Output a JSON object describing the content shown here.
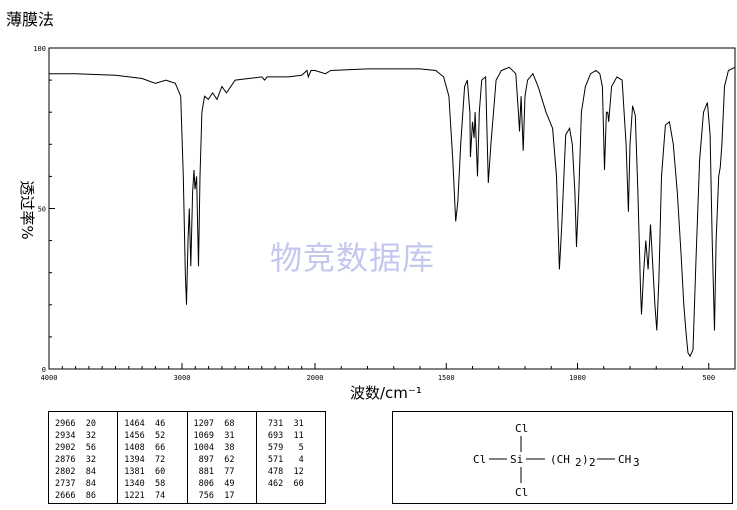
{
  "method_label": "薄膜法",
  "watermark": "物竞数据库",
  "chart_data": {
    "type": "line",
    "xlabel": "波数/cm⁻¹",
    "ylabel": "透过率%",
    "xlim": [
      4000,
      400
    ],
    "ylim": [
      0,
      100
    ],
    "x_ticks": [
      4000,
      3000,
      2000,
      1500,
      1000,
      500
    ],
    "y_ticks": [
      0,
      50,
      100
    ],
    "series": [
      {
        "points": [
          [
            4000,
            92
          ],
          [
            3800,
            92
          ],
          [
            3500,
            91.5
          ],
          [
            3300,
            90.5
          ],
          [
            3200,
            89
          ],
          [
            3120,
            90
          ],
          [
            3050,
            89
          ],
          [
            3010,
            85
          ],
          [
            2990,
            60
          ],
          [
            2975,
            30
          ],
          [
            2966,
            20
          ],
          [
            2955,
            40
          ],
          [
            2945,
            50
          ],
          [
            2934,
            32
          ],
          [
            2920,
            55
          ],
          [
            2910,
            62
          ],
          [
            2902,
            56
          ],
          [
            2890,
            60
          ],
          [
            2876,
            32
          ],
          [
            2865,
            60
          ],
          [
            2850,
            80
          ],
          [
            2830,
            85
          ],
          [
            2802,
            84
          ],
          [
            2770,
            86
          ],
          [
            2737,
            84
          ],
          [
            2700,
            88
          ],
          [
            2666,
            86
          ],
          [
            2600,
            90
          ],
          [
            2500,
            90.5
          ],
          [
            2400,
            91
          ],
          [
            2380,
            90
          ],
          [
            2360,
            91
          ],
          [
            2300,
            91
          ],
          [
            2200,
            91
          ],
          [
            2100,
            91.5
          ],
          [
            2060,
            93
          ],
          [
            2050,
            91
          ],
          [
            2030,
            93
          ],
          [
            2000,
            93
          ],
          [
            1960,
            92
          ],
          [
            1940,
            93
          ],
          [
            1800,
            93.5
          ],
          [
            1600,
            93.5
          ],
          [
            1540,
            93
          ],
          [
            1510,
            91
          ],
          [
            1490,
            85
          ],
          [
            1475,
            65
          ],
          [
            1464,
            46
          ],
          [
            1456,
            52
          ],
          [
            1445,
            70
          ],
          [
            1430,
            88
          ],
          [
            1420,
            90
          ],
          [
            1410,
            80
          ],
          [
            1408,
            66
          ],
          [
            1400,
            77
          ],
          [
            1394,
            72
          ],
          [
            1390,
            80
          ],
          [
            1381,
            60
          ],
          [
            1374,
            80
          ],
          [
            1365,
            90
          ],
          [
            1350,
            91
          ],
          [
            1340,
            58
          ],
          [
            1330,
            70
          ],
          [
            1310,
            90
          ],
          [
            1290,
            93
          ],
          [
            1260,
            94
          ],
          [
            1235,
            92
          ],
          [
            1225,
            80
          ],
          [
            1221,
            74
          ],
          [
            1215,
            85
          ],
          [
            1207,
            68
          ],
          [
            1200,
            85
          ],
          [
            1190,
            90
          ],
          [
            1170,
            92
          ],
          [
            1150,
            88
          ],
          [
            1120,
            80
          ],
          [
            1095,
            75
          ],
          [
            1080,
            60
          ],
          [
            1069,
            31
          ],
          [
            1060,
            45
          ],
          [
            1045,
            73
          ],
          [
            1030,
            75
          ],
          [
            1020,
            70
          ],
          [
            1010,
            55
          ],
          [
            1004,
            38
          ],
          [
            995,
            55
          ],
          [
            985,
            80
          ],
          [
            970,
            88
          ],
          [
            950,
            92
          ],
          [
            930,
            93
          ],
          [
            915,
            92
          ],
          [
            905,
            88
          ],
          [
            897,
            62
          ],
          [
            890,
            80
          ],
          [
            885,
            80
          ],
          [
            881,
            77
          ],
          [
            870,
            88
          ],
          [
            850,
            91
          ],
          [
            830,
            90
          ],
          [
            815,
            70
          ],
          [
            806,
            49
          ],
          [
            800,
            70
          ],
          [
            790,
            82
          ],
          [
            780,
            79
          ],
          [
            770,
            55
          ],
          [
            760,
            25
          ],
          [
            756,
            17
          ],
          [
            748,
            30
          ],
          [
            740,
            40
          ],
          [
            731,
            31
          ],
          [
            722,
            45
          ],
          [
            715,
            35
          ],
          [
            705,
            20
          ],
          [
            698,
            12
          ],
          [
            690,
            28
          ],
          [
            680,
            60
          ],
          [
            665,
            76
          ],
          [
            650,
            77
          ],
          [
            635,
            70
          ],
          [
            620,
            55
          ],
          [
            605,
            35
          ],
          [
            595,
            20
          ],
          [
            585,
            10
          ],
          [
            579,
            5
          ],
          [
            571,
            4
          ],
          [
            560,
            6
          ],
          [
            548,
            35
          ],
          [
            535,
            65
          ],
          [
            520,
            80
          ],
          [
            505,
            83
          ],
          [
            495,
            73
          ],
          [
            487,
            40
          ],
          [
            478,
            12
          ],
          [
            472,
            40
          ],
          [
            462,
            60
          ],
          [
            456,
            63
          ],
          [
            450,
            70
          ],
          [
            440,
            88
          ],
          [
            425,
            93
          ],
          [
            400,
            94
          ]
        ]
      }
    ]
  },
  "peak_table": [
    {
      "rows": [
        [
          "2966",
          "20"
        ],
        [
          "2934",
          "32"
        ],
        [
          "2902",
          "56"
        ],
        [
          "2876",
          "32"
        ],
        [
          "2802",
          "84"
        ],
        [
          "2737",
          "84"
        ],
        [
          "2666",
          "86"
        ]
      ]
    },
    {
      "rows": [
        [
          "1464",
          "46"
        ],
        [
          "1456",
          "52"
        ],
        [
          "1408",
          "66"
        ],
        [
          "1394",
          "72"
        ],
        [
          "1381",
          "60"
        ],
        [
          "1340",
          "58"
        ],
        [
          "1221",
          "74"
        ]
      ]
    },
    {
      "rows": [
        [
          "1207",
          "68"
        ],
        [
          "1069",
          "31"
        ],
        [
          "1004",
          "38"
        ],
        [
          "897",
          "62"
        ],
        [
          "881",
          "77"
        ],
        [
          "806",
          "49"
        ],
        [
          "756",
          "17"
        ]
      ]
    },
    {
      "rows": [
        [
          "731",
          "31"
        ],
        [
          "693",
          "11"
        ],
        [
          "579",
          "5"
        ],
        [
          "571",
          "4"
        ],
        [
          "478",
          "12"
        ],
        [
          "462",
          "60"
        ]
      ]
    }
  ],
  "structure": {
    "atom_cl_top": "Cl",
    "atom_cl_left": "Cl",
    "atom_si": "Si",
    "atom_cl_bottom": "Cl",
    "chain_open": "(CH",
    "chain_sub_2": "2",
    "chain_close": ")",
    "chain_sub_n": "2",
    "terminal": "CH",
    "terminal_sub": "3"
  }
}
